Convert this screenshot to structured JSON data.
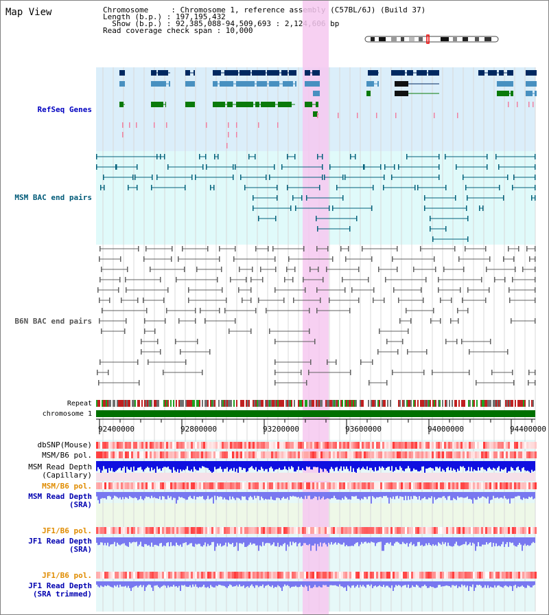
{
  "view_title": "Map View",
  "info": {
    "chromosome_line": "Chromosome     : Chromosome 1, reference assembly (C57BL/6J) (Build 37)",
    "length_line": "Length (b.p.) : 197,195,432",
    "show_line": "  Show (b.p.) : 92,385,088-94,509,693 : 2,124,606 bp",
    "coverage_line": "Read coverage check span : 10,000"
  },
  "tracks": {
    "refseq": "RefSeq Genes",
    "msm_bac": "MSM BAC end pairs",
    "b6n_bac": "B6N BAC end pairs",
    "repeat": "Repeat",
    "chromosome": "chromosome 1",
    "dbsnp": "dbSNP(Mouse)",
    "msm_pol_1": "MSM/B6 pol.",
    "msm_depth_cap_1": "MSM Read Depth",
    "msm_depth_cap_2": "(Capillary)",
    "msm_pol_2": "MSM/B6 pol.",
    "msm_depth_sra_1": "MSM Read Depth",
    "msm_depth_sra_2": "(SRA)",
    "jf1_pol_1": "JF1/B6 pol.",
    "jf1_depth_sra_1": "JF1 Read Depth",
    "jf1_depth_sra_2": "(SRA)",
    "jf1_pol_2": "JF1/B6 pol.",
    "jf1_depth_trim_1": "JF1 Read Depth",
    "jf1_depth_trim_2": "(SRA trimmed)"
  },
  "axis_ticks": [
    "92400000",
    "92800000",
    "93200000",
    "93600000",
    "94000000",
    "94400000"
  ],
  "colors": {
    "refseq_bg": "#dbeefa",
    "msm_bg": "#e0fafa",
    "highlight": "#f6c8f0",
    "gene_dark": "#002860",
    "gene_mid": "#4890c0",
    "gene_green": "#0a7a0a",
    "msm_line": "#00607a",
    "b6n_line": "#606060",
    "chromosome_bar": "#007000",
    "depth_blue": "#1010e0",
    "depth_light": "#7878f0"
  }
}
